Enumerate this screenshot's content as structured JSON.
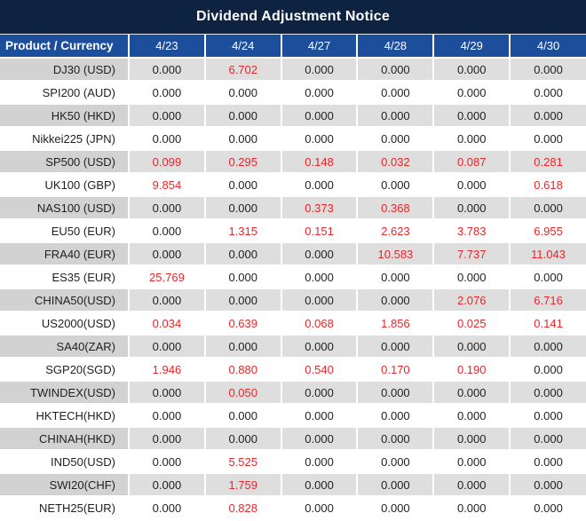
{
  "title": "Dividend Adjustment Notice",
  "table": {
    "product_header": "Product / Currency",
    "date_headers": [
      "4/23",
      "4/24",
      "4/27",
      "4/28",
      "4/29",
      "4/30"
    ],
    "rows": [
      {
        "product": "DJ30 (USD)",
        "values": [
          "0.000",
          "6.702",
          "0.000",
          "0.000",
          "0.000",
          "0.000"
        ]
      },
      {
        "product": "SPI200 (AUD)",
        "values": [
          "0.000",
          "0.000",
          "0.000",
          "0.000",
          "0.000",
          "0.000"
        ]
      },
      {
        "product": "HK50 (HKD)",
        "values": [
          "0.000",
          "0.000",
          "0.000",
          "0.000",
          "0.000",
          "0.000"
        ]
      },
      {
        "product": "Nikkei225 (JPN)",
        "values": [
          "0.000",
          "0.000",
          "0.000",
          "0.000",
          "0.000",
          "0.000"
        ]
      },
      {
        "product": "SP500 (USD)",
        "values": [
          "0.099",
          "0.295",
          "0.148",
          "0.032",
          "0.087",
          "0.281"
        ]
      },
      {
        "product": "UK100 (GBP)",
        "values": [
          "9.854",
          "0.000",
          "0.000",
          "0.000",
          "0.000",
          "0.618"
        ]
      },
      {
        "product": "NAS100 (USD)",
        "values": [
          "0.000",
          "0.000",
          "0.373",
          "0.368",
          "0.000",
          "0.000"
        ]
      },
      {
        "product": "EU50 (EUR)",
        "values": [
          "0.000",
          "1.315",
          "0.151",
          "2.623",
          "3.783",
          "6.955"
        ]
      },
      {
        "product": "FRA40 (EUR)",
        "values": [
          "0.000",
          "0.000",
          "0.000",
          "10.583",
          "7.737",
          "11.043"
        ]
      },
      {
        "product": "ES35 (EUR)",
        "values": [
          "25.769",
          "0.000",
          "0.000",
          "0.000",
          "0.000",
          "0.000"
        ]
      },
      {
        "product": "CHINA50(USD)",
        "values": [
          "0.000",
          "0.000",
          "0.000",
          "0.000",
          "2.076",
          "6.716"
        ]
      },
      {
        "product": "US2000(USD)",
        "values": [
          "0.034",
          "0.639",
          "0.068",
          "1.856",
          "0.025",
          "0.141"
        ]
      },
      {
        "product": "SA40(ZAR)",
        "values": [
          "0.000",
          "0.000",
          "0.000",
          "0.000",
          "0.000",
          "0.000"
        ]
      },
      {
        "product": "SGP20(SGD)",
        "values": [
          "1.946",
          "0.880",
          "0.540",
          "0.170",
          "0.190",
          "0.000"
        ]
      },
      {
        "product": "TWINDEX(USD)",
        "values": [
          "0.000",
          "0.050",
          "0.000",
          "0.000",
          "0.000",
          "0.000"
        ]
      },
      {
        "product": "HKTECH(HKD)",
        "values": [
          "0.000",
          "0.000",
          "0.000",
          "0.000",
          "0.000",
          "0.000"
        ]
      },
      {
        "product": "CHINAH(HKD)",
        "values": [
          "0.000",
          "0.000",
          "0.000",
          "0.000",
          "0.000",
          "0.000"
        ]
      },
      {
        "product": "IND50(USD)",
        "values": [
          "0.000",
          "5.525",
          "0.000",
          "0.000",
          "0.000",
          "0.000"
        ]
      },
      {
        "product": "SWI20(CHF)",
        "values": [
          "0.000",
          "1.759",
          "0.000",
          "0.000",
          "0.000",
          "0.000"
        ]
      },
      {
        "product": "NETH25(EUR)",
        "values": [
          "0.000",
          "0.828",
          "0.000",
          "0.000",
          "0.000",
          "0.000"
        ]
      }
    ],
    "value_color_rule": "zero values black, non-zero values red"
  },
  "colors": {
    "title_bg": "#0d2341",
    "header_bg": "#1d4e9c",
    "stripe_product": "#d2d2d2",
    "stripe_data": "#dedede",
    "row_white": "#ffffff",
    "value_black": "#1f1f1f",
    "value_red": "#e8262a"
  }
}
